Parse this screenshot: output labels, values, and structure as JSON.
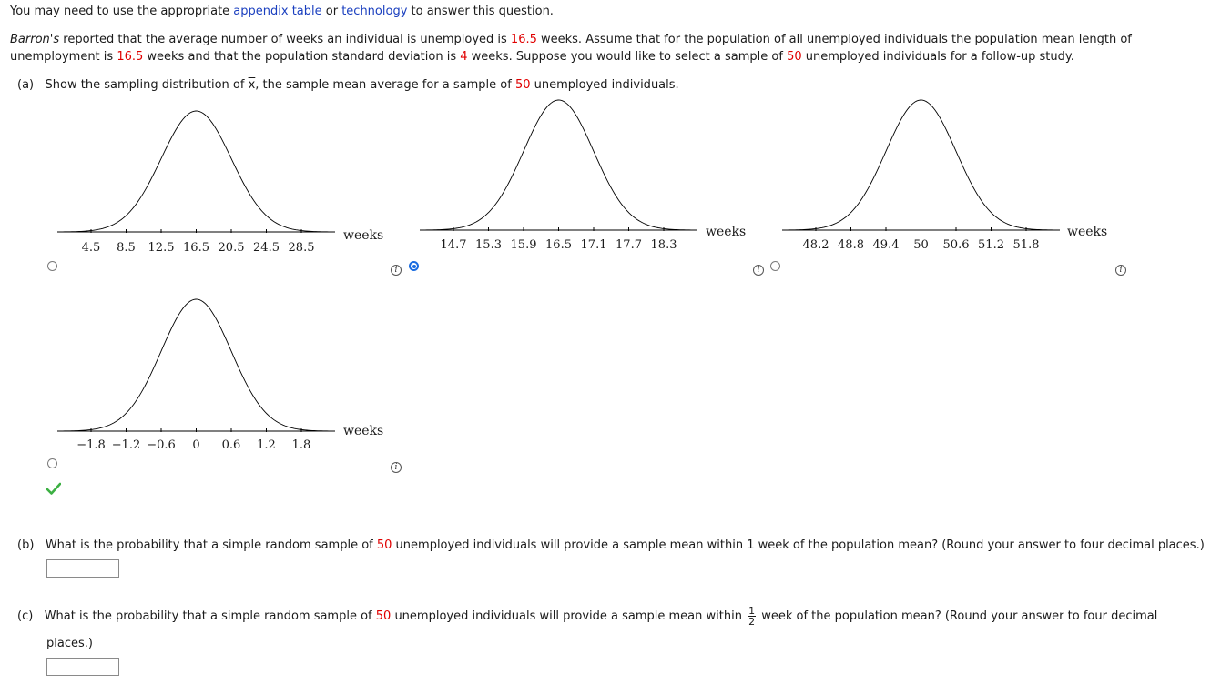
{
  "intro": {
    "prefix": "You may need to use the appropriate ",
    "link1": "appendix table",
    "mid": " or ",
    "link2": "technology",
    "suffix": " to answer this question."
  },
  "problem": {
    "source": "Barron's",
    "t1": " reported that the average number of weeks an individual is unemployed is ",
    "mean1": "16.5",
    "t2": " weeks. Assume that for the population of all unemployed individuals the population mean length of",
    "t3": "unemployment is ",
    "mean2": "16.5",
    "t4": " weeks and that the population standard deviation is ",
    "sd": "4",
    "t5": " weeks. Suppose you would like to select a sample of ",
    "n": "50",
    "t6": " unemployed individuals for a follow-up study."
  },
  "part_a": {
    "label": "(a)",
    "t1": "Show the sampling distribution of ",
    "xvar": "x",
    "t2": ", the sample mean average for a sample of ",
    "n": "50",
    "t3": " unemployed individuals."
  },
  "graphs": [
    {
      "unit": "weeks",
      "ticks": [
        "4.5",
        "8.5",
        "12.5",
        "16.5",
        "20.5",
        "24.5",
        "28.5"
      ],
      "selected": false
    },
    {
      "unit": "weeks",
      "ticks": [
        "14.7",
        "15.3",
        "15.9",
        "16.5",
        "17.1",
        "17.7",
        "18.3"
      ],
      "selected": true
    },
    {
      "unit": "weeks",
      "ticks": [
        "48.2",
        "48.8",
        "49.4",
        "50",
        "50.6",
        "51.2",
        "51.8"
      ],
      "selected": false
    },
    {
      "unit": "weeks",
      "ticks": [
        "−1.8",
        "−1.2",
        "−0.6",
        "0",
        "0.6",
        "1.2",
        "1.8"
      ],
      "selected": false
    }
  ],
  "info_glyph": "i",
  "check_icon": "check-icon",
  "part_b": {
    "label": "(b)",
    "t1": "What is the probability that a simple random sample of ",
    "n": "50",
    "t2": " unemployed individuals will provide a sample mean within 1 week of the population mean? (Round your answer to four decimal places.)",
    "answer": ""
  },
  "part_c": {
    "label": "(c)",
    "t1": "What is the probability that a simple random sample of ",
    "n": "50",
    "t2": " unemployed individuals will provide a sample mean within ",
    "frac_num": "1",
    "frac_den": "2",
    "t3": " week of the population mean? (Round your answer to four decimal",
    "t4": "places.)",
    "answer": ""
  },
  "colors": {
    "link": "#1a3fbf",
    "given": "#e00000",
    "radio_selected": "#1a6ce0",
    "check": "#3cb043"
  }
}
